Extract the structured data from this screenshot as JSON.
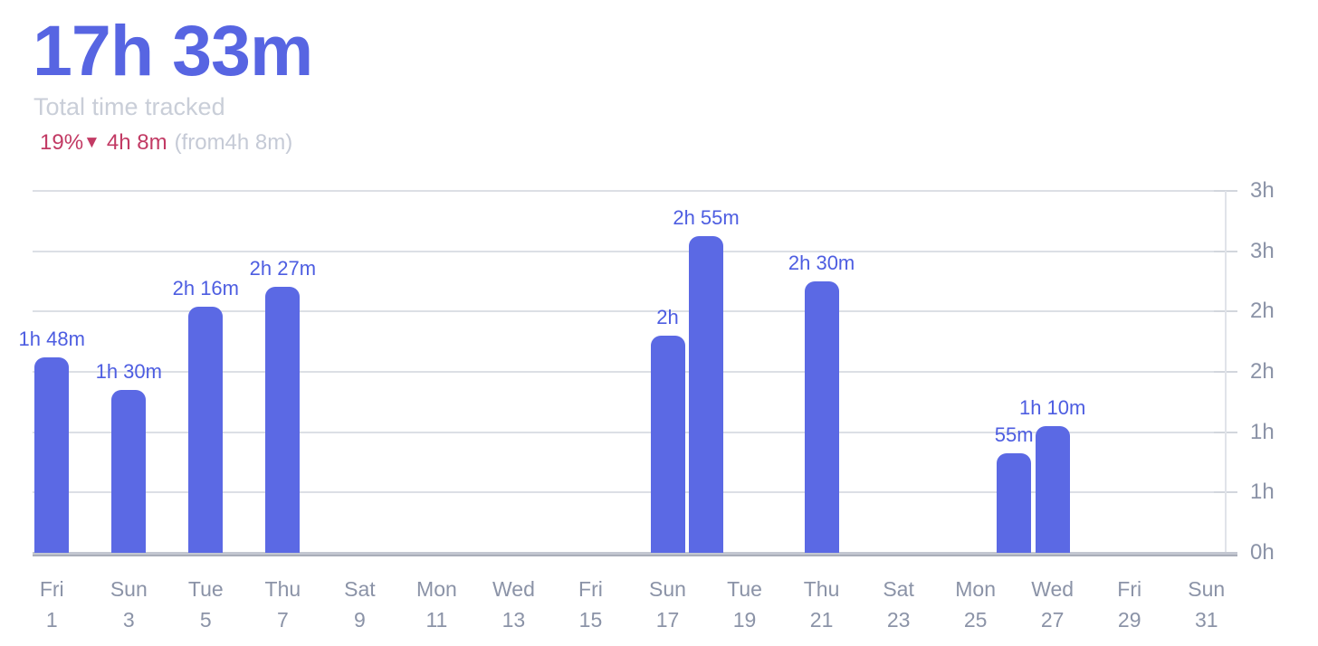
{
  "header": {
    "total": "17h 33m",
    "subtitle": "Total time tracked",
    "delta_percent": "19%",
    "delta_arrow": "▼",
    "delta_amount": "4h 8m",
    "delta_comparison": "(from4h 8m)"
  },
  "colors": {
    "accent_bar": "#5b69e4",
    "title_blue": "#5765e2",
    "value_label_blue": "#4d5de1",
    "danger_red": "#c23a64",
    "muted_gray": "#c9ced8",
    "axis_text_gray": "#8b93a7",
    "gridline_gray": "#dcdfe5",
    "axis_line_gray": "#a9aeb9"
  },
  "chart_data": {
    "type": "bar",
    "title": "17h 33m",
    "subtitle": "Total time tracked",
    "unit": "minutes",
    "days_in_month": 31,
    "grid": true,
    "legend": false,
    "bars": [
      {
        "day": 1,
        "label": "1h 48m",
        "minutes": 108
      },
      {
        "day": 3,
        "label": "1h 30m",
        "minutes": 90
      },
      {
        "day": 5,
        "label": "2h 16m",
        "minutes": 136
      },
      {
        "day": 7,
        "label": "2h 27m",
        "minutes": 147
      },
      {
        "day": 17,
        "label": "2h",
        "minutes": 120
      },
      {
        "day": 18,
        "label": "2h 55m",
        "minutes": 175
      },
      {
        "day": 21,
        "label": "2h 30m",
        "minutes": 150
      },
      {
        "day": 26,
        "label": "55m",
        "minutes": 55
      },
      {
        "day": 27,
        "label": "1h 10m",
        "minutes": 70
      }
    ],
    "x_axis": {
      "tick_labels": [
        {
          "weekday": "Fri",
          "day": "1"
        },
        {
          "weekday": "Sun",
          "day": "3"
        },
        {
          "weekday": "Tue",
          "day": "5"
        },
        {
          "weekday": "Thu",
          "day": "7"
        },
        {
          "weekday": "Sat",
          "day": "9"
        },
        {
          "weekday": "Mon",
          "day": "11"
        },
        {
          "weekday": "Wed",
          "day": "13"
        },
        {
          "weekday": "Fri",
          "day": "15"
        },
        {
          "weekday": "Sun",
          "day": "17"
        },
        {
          "weekday": "Tue",
          "day": "19"
        },
        {
          "weekday": "Thu",
          "day": "21"
        },
        {
          "weekday": "Sat",
          "day": "23"
        },
        {
          "weekday": "Mon",
          "day": "25"
        },
        {
          "weekday": "Wed",
          "day": "27"
        },
        {
          "weekday": "Fri",
          "day": "29"
        },
        {
          "weekday": "Sun",
          "day": "31"
        }
      ]
    },
    "y_axis": {
      "side": "right",
      "min_minutes": 0,
      "max_minutes": 200,
      "tick_labels_bottom_to_top": [
        "0h",
        "1h",
        "1h",
        "2h",
        "2h",
        "3h",
        "3h"
      ]
    }
  }
}
